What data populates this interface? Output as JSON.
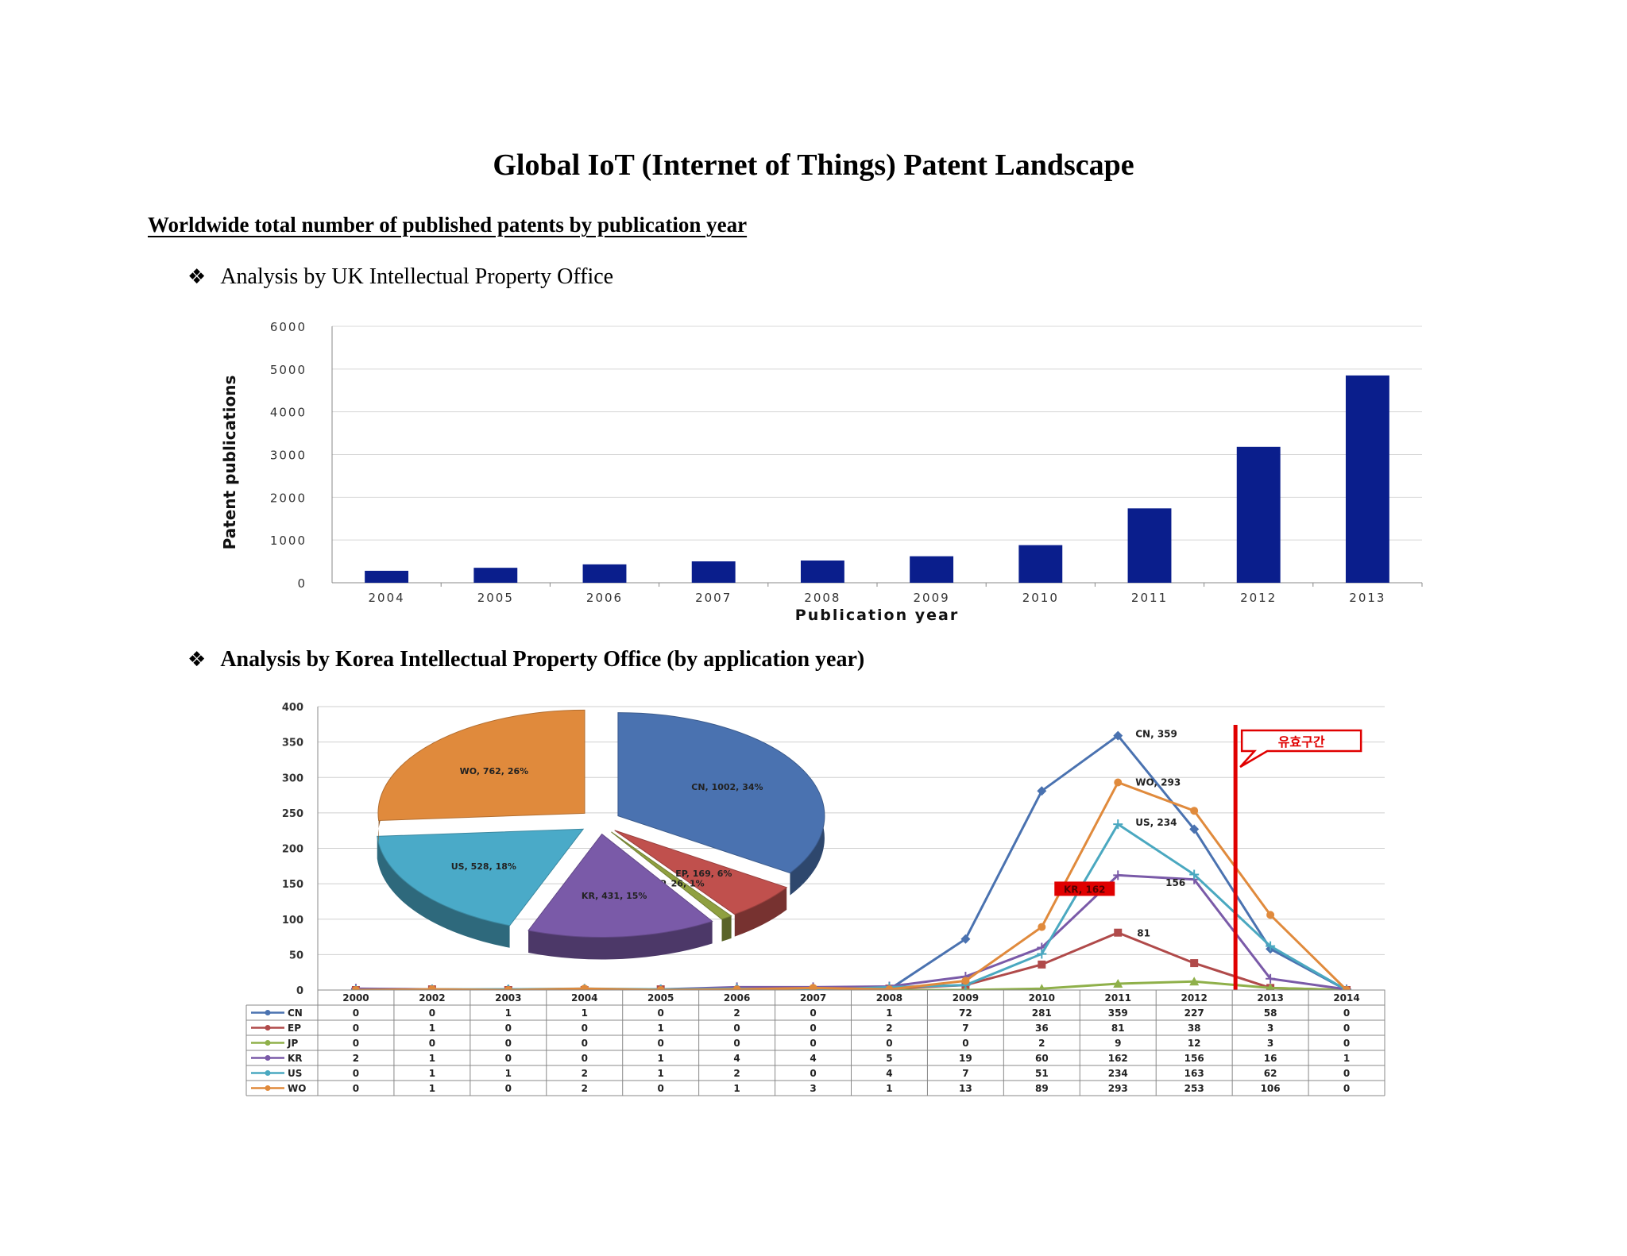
{
  "title": "Global IoT (Internet of Things) Patent Landscape",
  "subtitle": "Worldwide total number of published patents by publication year",
  "bullet1": "Analysis by UK Intellectual Property Office",
  "bullet2": "Analysis by Korea Intellectual Property Office (by application year)",
  "bullet_glyph": "❖",
  "chart_data": [
    {
      "type": "bar",
      "categories": [
        "2004",
        "2005",
        "2006",
        "2007",
        "2008",
        "2009",
        "2010",
        "2011",
        "2012",
        "2013"
      ],
      "values": [
        280,
        350,
        430,
        500,
        520,
        620,
        880,
        1740,
        3180,
        4850
      ],
      "xlabel": "Publication year",
      "ylabel": "Patent publications",
      "ylim": [
        0,
        6000
      ],
      "yticks": [
        0,
        1000,
        2000,
        3000,
        4000,
        5000,
        6000
      ],
      "color": "#0a1e8c",
      "grid": true
    },
    {
      "type": "line",
      "x": [
        "2000",
        "2002",
        "2003",
        "2004",
        "2005",
        "2006",
        "2007",
        "2008",
        "2009",
        "2010",
        "2011",
        "2012",
        "2013",
        "2014"
      ],
      "ylim": [
        0,
        400
      ],
      "yticks": [
        0,
        50,
        100,
        150,
        200,
        250,
        300,
        350,
        400
      ],
      "grid": true,
      "series": [
        {
          "name": "CN",
          "color": "#4a72b0",
          "marker": "diamond",
          "values": [
            0,
            0,
            1,
            1,
            0,
            2,
            0,
            1,
            72,
            281,
            359,
            227,
            58,
            0
          ]
        },
        {
          "name": "EP",
          "color": "#b04a4a",
          "marker": "square",
          "values": [
            0,
            1,
            0,
            0,
            1,
            0,
            0,
            2,
            7,
            36,
            81,
            38,
            3,
            0
          ]
        },
        {
          "name": "JP",
          "color": "#8fb04a",
          "marker": "triangle",
          "values": [
            0,
            0,
            0,
            0,
            0,
            0,
            0,
            0,
            0,
            2,
            9,
            12,
            3,
            0
          ]
        },
        {
          "name": "KR",
          "color": "#7a5aa8",
          "marker": "cross",
          "values": [
            2,
            1,
            0,
            0,
            1,
            4,
            4,
            5,
            19,
            60,
            162,
            156,
            16,
            1
          ]
        },
        {
          "name": "US",
          "color": "#4aa8c0",
          "marker": "star",
          "values": [
            0,
            1,
            1,
            2,
            1,
            2,
            0,
            4,
            7,
            51,
            234,
            163,
            62,
            0
          ]
        },
        {
          "name": "WO",
          "color": "#e08a3c",
          "marker": "circle",
          "values": [
            0,
            1,
            0,
            2,
            0,
            1,
            3,
            1,
            13,
            89,
            293,
            253,
            106,
            0
          ]
        }
      ],
      "annotations": [
        "CN, 359",
        "WO, 293",
        "US, 234",
        "KR, 162",
        "156",
        "81"
      ],
      "callout": "유효구간",
      "pie": {
        "type": "pie",
        "slices": [
          {
            "label": "CN, 1002, 34%",
            "value": 1002,
            "color": "#4a72b0"
          },
          {
            "label": "EP, 169, 6%",
            "value": 169,
            "color": "#c0504d"
          },
          {
            "label": "JP, 26, 1%",
            "value": 26,
            "color": "#8fa040"
          },
          {
            "label": "KR, 431, 15%",
            "value": 431,
            "color": "#7a5aa8"
          },
          {
            "label": "US, 528, 18%",
            "value": 528,
            "color": "#4aaac8"
          },
          {
            "label": "WO, 762, 26%",
            "value": 762,
            "color": "#e08a3c"
          }
        ]
      }
    }
  ]
}
